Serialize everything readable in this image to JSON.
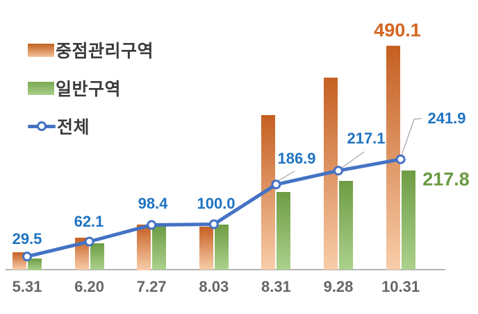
{
  "legend": {
    "items": [
      {
        "label": "중점관리구역",
        "type": "bar",
        "color": "#c55f22"
      },
      {
        "label": "일반구역",
        "type": "bar",
        "color": "#6e9c44"
      },
      {
        "label": "전체",
        "type": "line",
        "color": "#4472c4"
      }
    ]
  },
  "chart_data": {
    "type": "bar",
    "subtype": "grouped bars with overlaid line",
    "categories": [
      "5.31",
      "6.20",
      "7.27",
      "8.03",
      "8.31",
      "9.28",
      "10.31"
    ],
    "series": [
      {
        "name": "중점관리구역",
        "type": "bar",
        "color_top": "#c55f22",
        "color_bottom": "#f8cda9",
        "values": [
          38,
          71,
          100,
          94,
          339,
          420,
          490.1
        ]
      },
      {
        "name": "일반구역",
        "type": "bar",
        "color_top": "#6e9c44",
        "color_bottom": "#abd18c",
        "values": [
          25,
          59,
          96,
          99,
          170,
          195,
          217.8
        ]
      },
      {
        "name": "전체",
        "type": "line",
        "color": "#4472c4",
        "values": [
          29.5,
          62.1,
          98.4,
          100.0,
          186.9,
          217.1,
          241.9
        ]
      }
    ],
    "line_point_labels": [
      "29.5",
      "62.1",
      "98.4",
      "100.0",
      "186.9",
      "217.1",
      "241.9"
    ],
    "bar_point_labels": [
      {
        "series": "중점관리구역",
        "category": "10.31",
        "text": "490.1",
        "color": "#d4641f"
      },
      {
        "series": "일반구역",
        "category": "10.31",
        "text": "217.8",
        "color": "#6a9a41"
      }
    ],
    "title": "",
    "xlabel": "",
    "ylabel": "",
    "ylim": [
      0,
      520
    ],
    "grid": false,
    "legend_position": "top-left",
    "y_axis_visible": false,
    "baseline_value": 0
  },
  "colors": {
    "value_label_blue": "#1e73c0",
    "x_label_gray": "#666666",
    "axis_line": "#b3b3b3",
    "callout_gray": "#a8a8a8",
    "legend_text": "#3a3a3a",
    "background": "#ffffff"
  }
}
